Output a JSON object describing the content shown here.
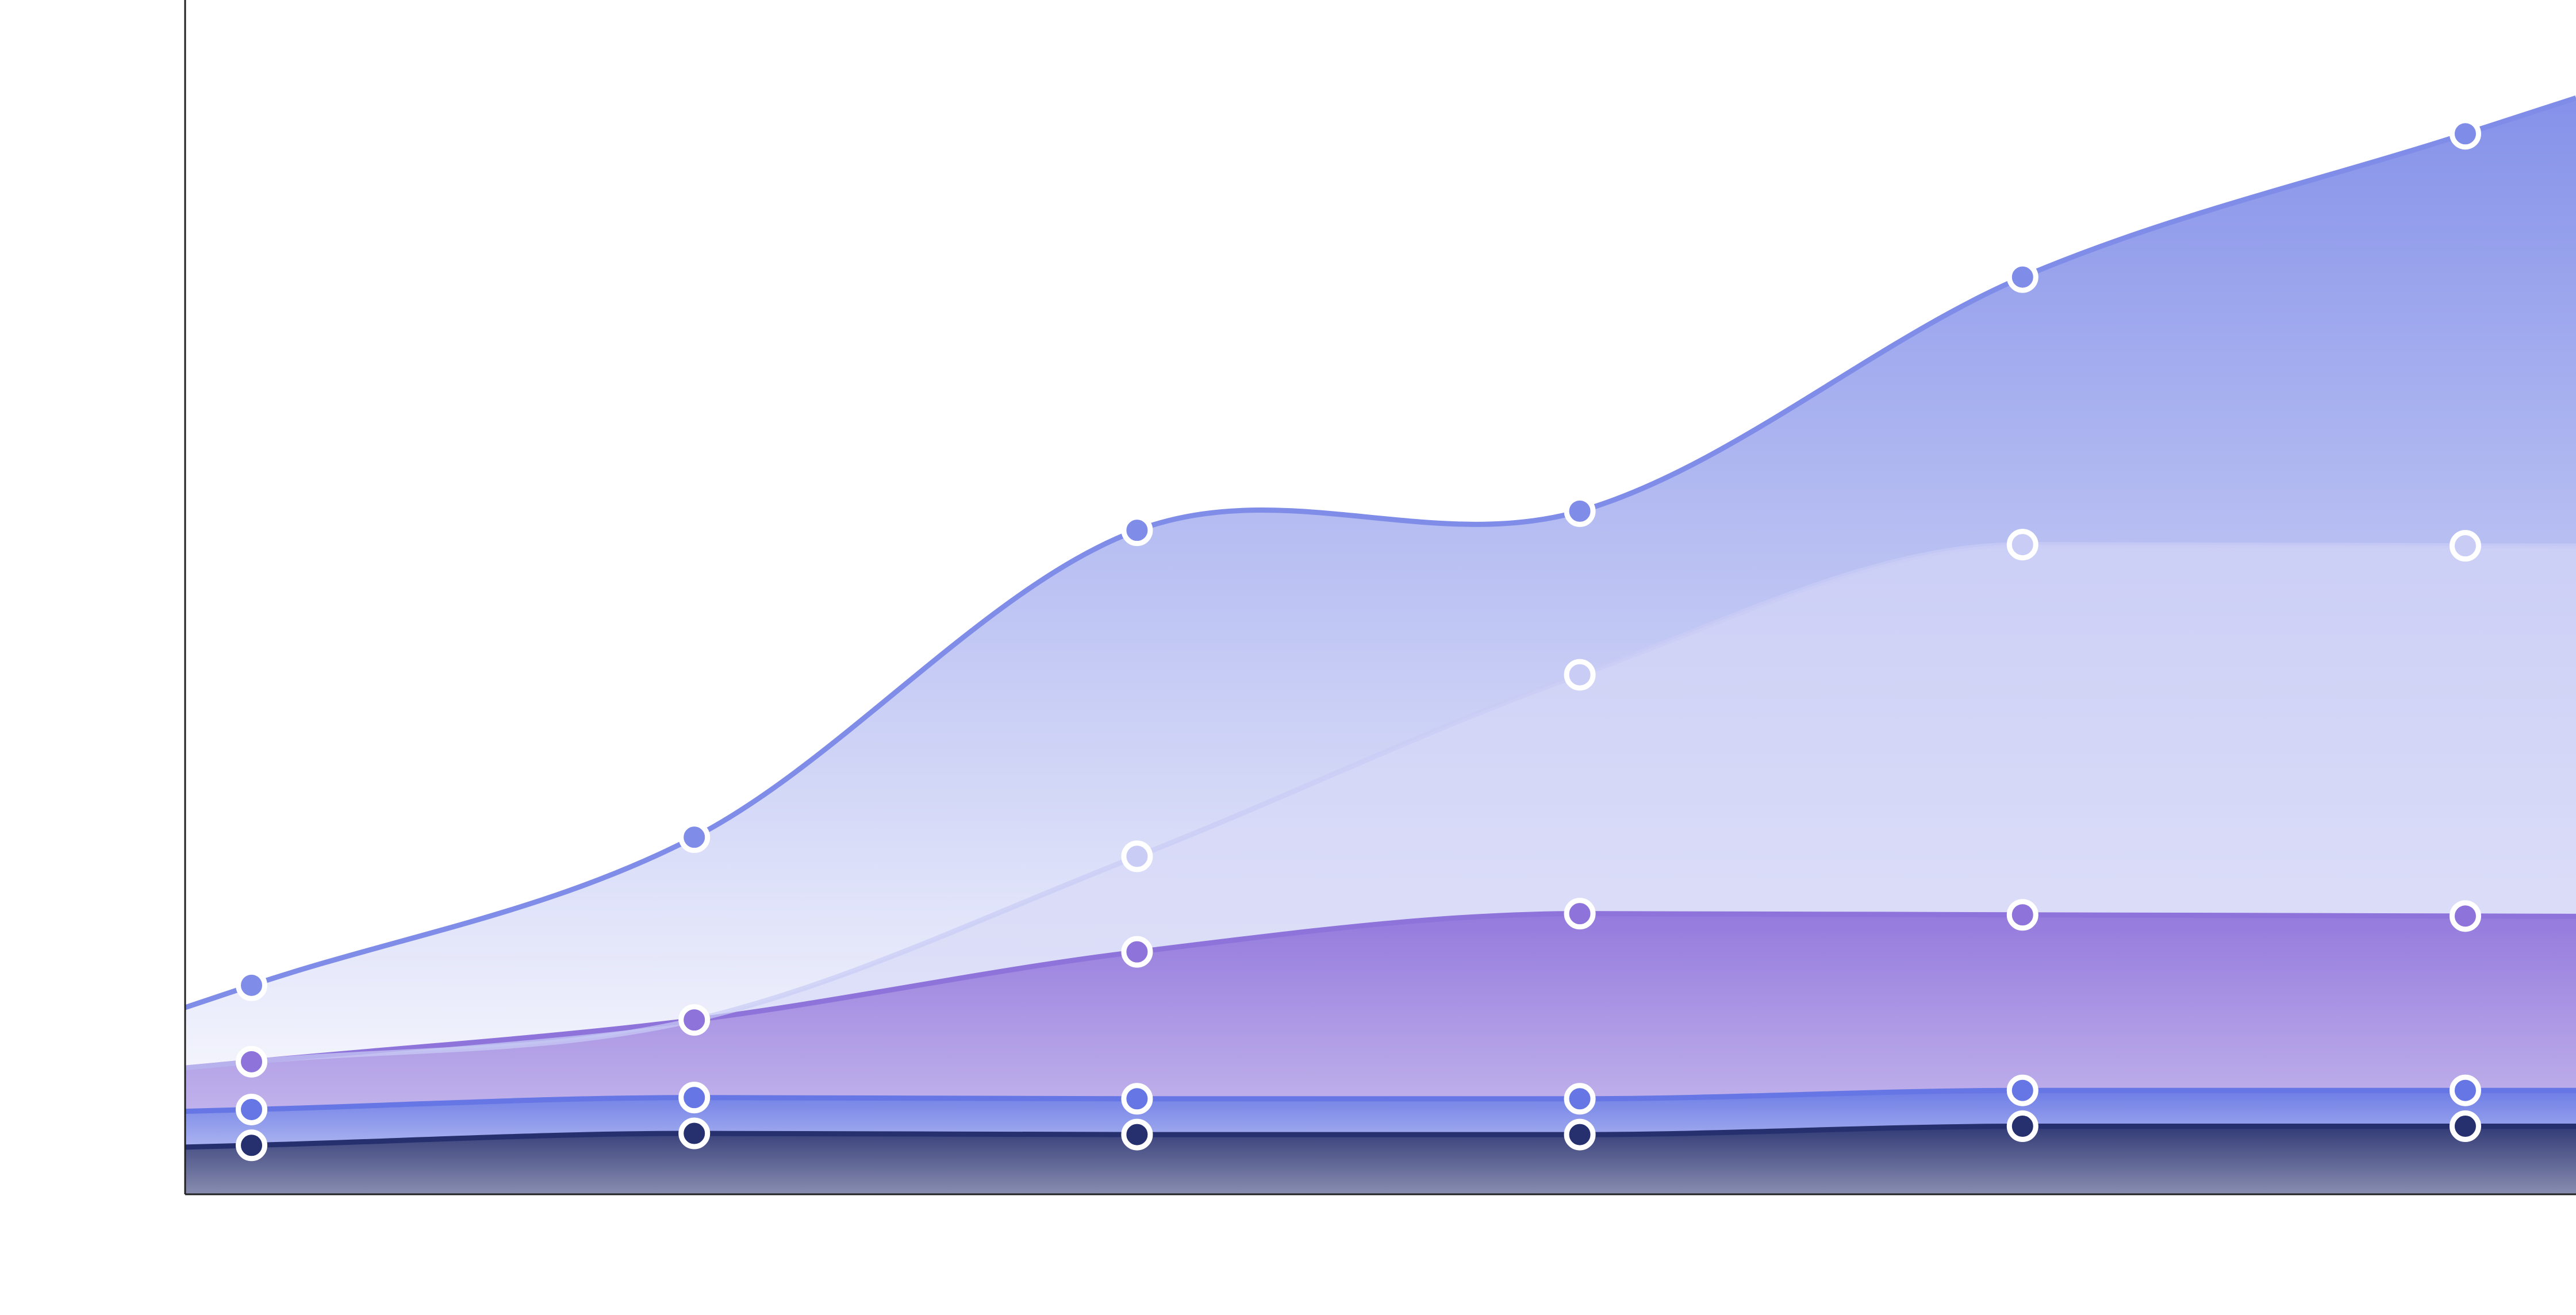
{
  "chart_data": {
    "type": "area",
    "stacked": true,
    "title": "",
    "xlabel": "",
    "ylabel": "",
    "x": [
      1,
      2,
      3,
      4,
      5,
      6
    ],
    "xlim": [
      0.85,
      6.25
    ],
    "ylim": [
      0,
      100
    ],
    "grid": false,
    "legend": "none",
    "series": [
      {
        "values": [
          4.1,
          5.1,
          5.0,
          5.0,
          5.7,
          5.7
        ],
        "color": "#27306F"
      },
      {
        "values": [
          3.0,
          3.0,
          3.0,
          3.0,
          3.0,
          3.0
        ],
        "color": "#6676E4"
      },
      {
        "values": [
          4.0,
          6.5,
          12.3,
          15.5,
          14.7,
          14.6
        ],
        "color": "#8E73DB"
      },
      {
        "values": [
          0,
          0,
          8.0,
          20.0,
          31.0,
          31.0
        ],
        "color": "#C9CCF5"
      },
      {
        "values": [
          6.4,
          15.3,
          27.3,
          13.7,
          22.4,
          34.5
        ],
        "color": "#7F8CE8"
      }
    ]
  }
}
